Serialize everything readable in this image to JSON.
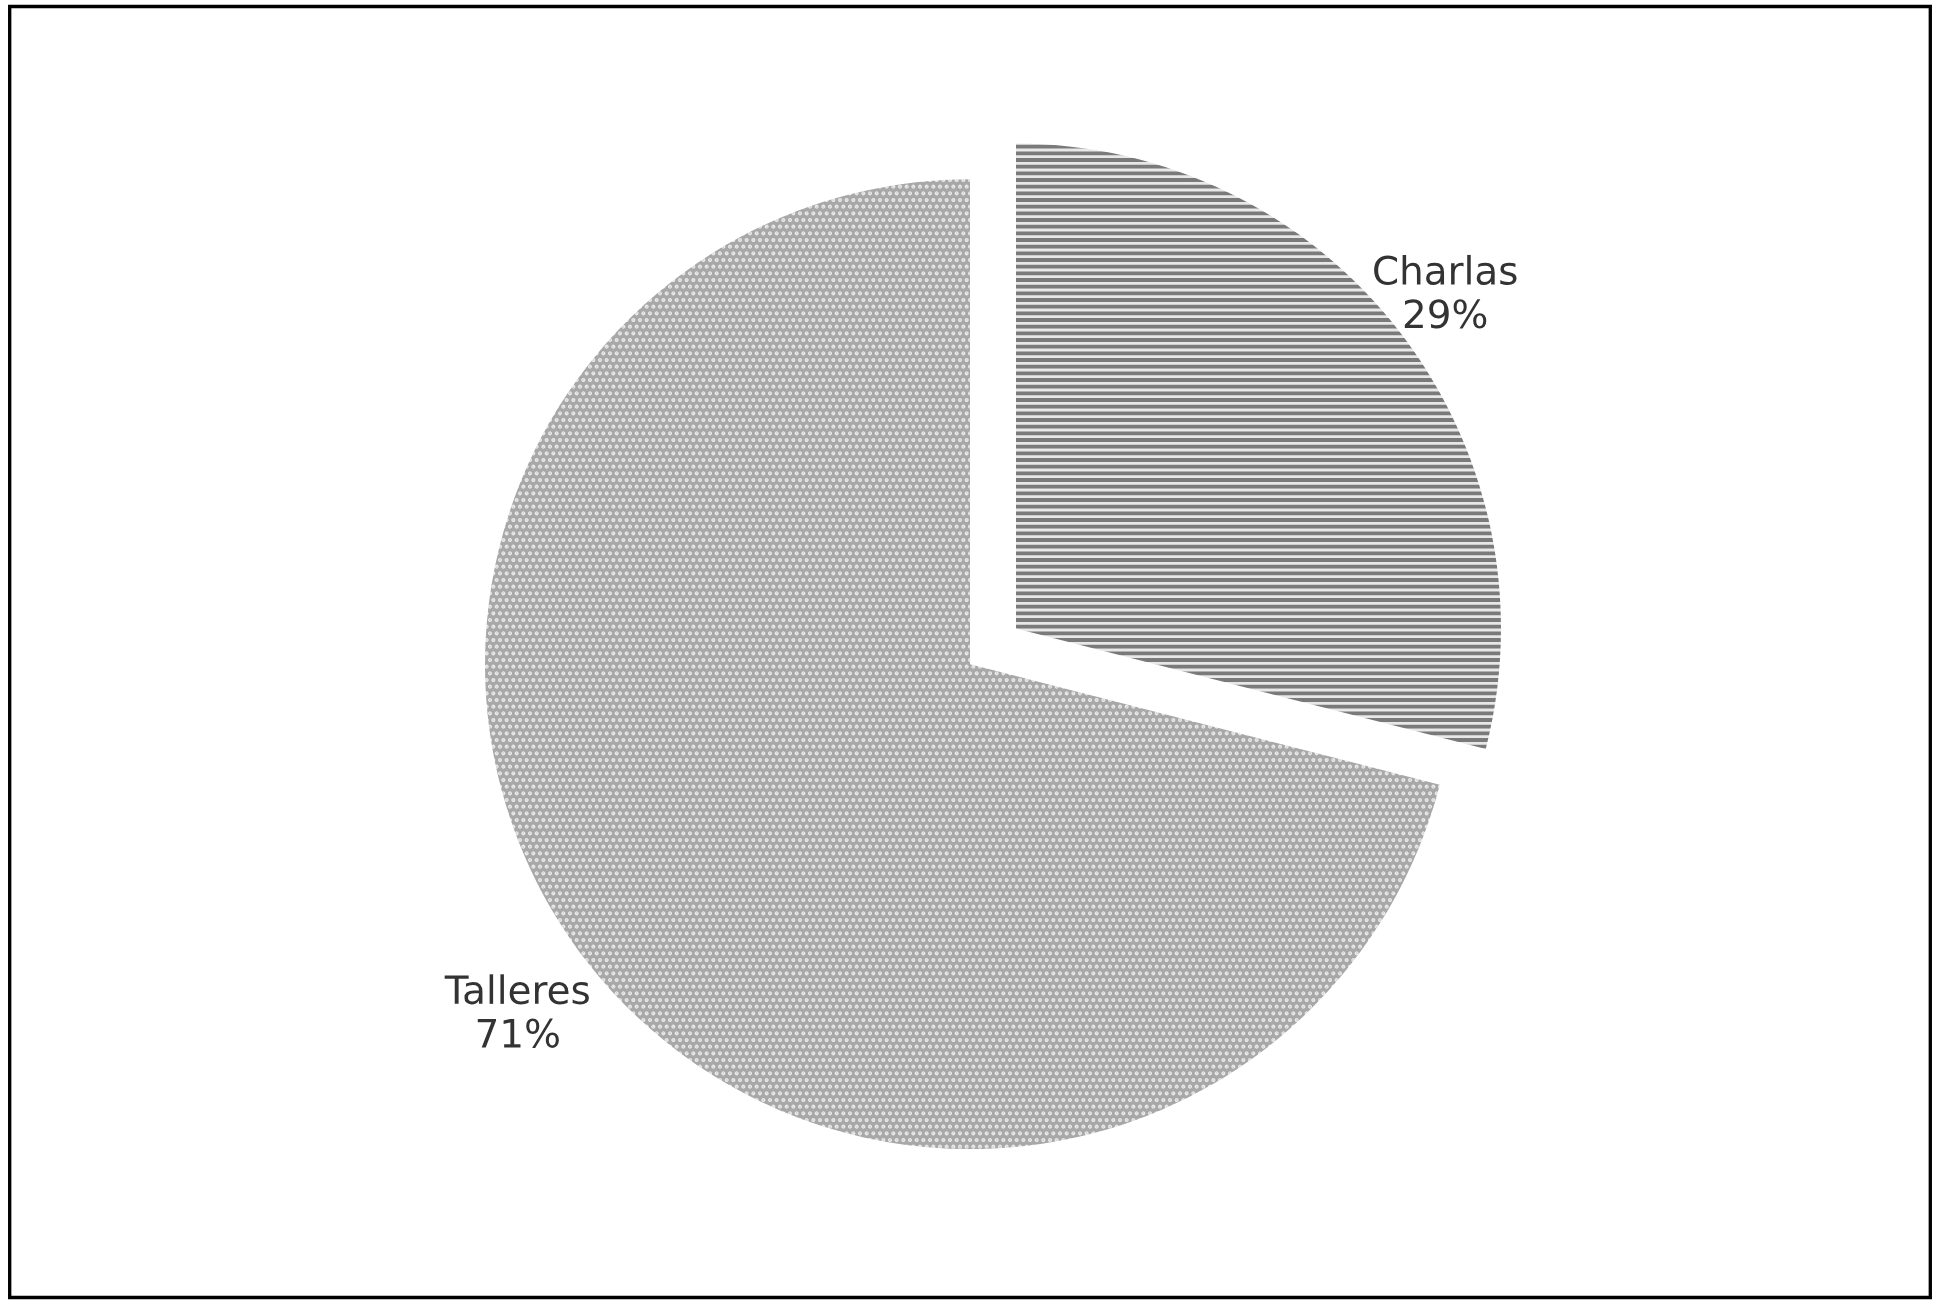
{
  "chart_data": {
    "type": "pie",
    "categories": [
      "Charlas",
      "Talleres"
    ],
    "values": [
      29,
      71
    ],
    "value_labels": [
      "29%",
      "71%"
    ],
    "colors": [
      "#7a7a7a",
      "#a8a8a8"
    ]
  }
}
